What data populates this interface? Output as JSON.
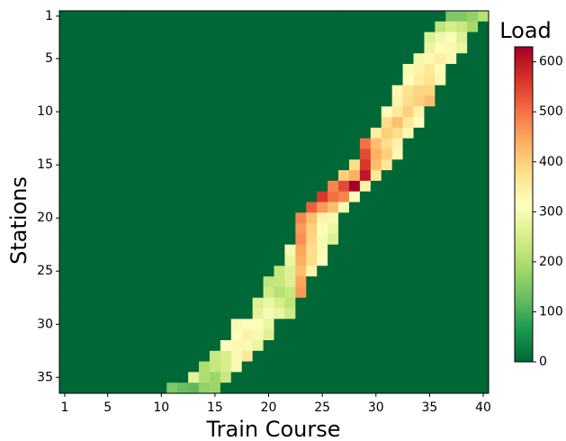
{
  "chart_data": {
    "type": "heatmap",
    "colorbar_title": "Load",
    "xlabel": "Train Course",
    "ylabel": "Stations",
    "colormap": "RdYlGn_r",
    "xlim": [
      1,
      40
    ],
    "ylim": [
      1,
      36
    ],
    "xticks": [
      1,
      5,
      10,
      15,
      20,
      25,
      30,
      35,
      40
    ],
    "yticks": [
      1,
      5,
      10,
      15,
      20,
      25,
      30,
      35
    ],
    "zlim": [
      0,
      630
    ],
    "zticks": [
      0,
      100,
      200,
      300,
      400,
      500,
      600
    ],
    "z": [
      [
        0,
        0,
        0,
        0,
        0,
        0,
        0,
        0,
        0,
        0,
        0,
        0,
        0,
        0,
        0,
        0,
        0,
        0,
        0,
        0,
        0,
        0,
        0,
        0,
        0,
        0,
        0,
        0,
        0,
        0,
        0,
        0,
        0,
        0,
        0,
        0,
        150,
        150,
        170,
        210
      ],
      [
        0,
        0,
        0,
        0,
        0,
        0,
        0,
        0,
        0,
        0,
        0,
        0,
        0,
        0,
        0,
        0,
        0,
        0,
        0,
        0,
        0,
        0,
        0,
        0,
        0,
        0,
        0,
        0,
        0,
        0,
        0,
        0,
        0,
        0,
        0,
        220,
        250,
        230,
        190,
        0
      ],
      [
        0,
        0,
        0,
        0,
        0,
        0,
        0,
        0,
        0,
        0,
        0,
        0,
        0,
        0,
        0,
        0,
        0,
        0,
        0,
        0,
        0,
        0,
        0,
        0,
        0,
        0,
        0,
        0,
        0,
        0,
        0,
        0,
        0,
        0,
        260,
        290,
        310,
        260,
        0,
        0
      ],
      [
        0,
        0,
        0,
        0,
        0,
        0,
        0,
        0,
        0,
        0,
        0,
        0,
        0,
        0,
        0,
        0,
        0,
        0,
        0,
        0,
        0,
        0,
        0,
        0,
        0,
        0,
        0,
        0,
        0,
        0,
        0,
        0,
        0,
        0,
        280,
        320,
        330,
        280,
        0,
        0
      ],
      [
        0,
        0,
        0,
        0,
        0,
        0,
        0,
        0,
        0,
        0,
        0,
        0,
        0,
        0,
        0,
        0,
        0,
        0,
        0,
        0,
        0,
        0,
        0,
        0,
        0,
        0,
        0,
        0,
        0,
        0,
        0,
        0,
        0,
        290,
        330,
        350,
        300,
        0,
        0,
        0
      ],
      [
        0,
        0,
        0,
        0,
        0,
        0,
        0,
        0,
        0,
        0,
        0,
        0,
        0,
        0,
        0,
        0,
        0,
        0,
        0,
        0,
        0,
        0,
        0,
        0,
        0,
        0,
        0,
        0,
        0,
        0,
        0,
        0,
        300,
        340,
        360,
        320,
        0,
        0,
        0,
        0
      ],
      [
        0,
        0,
        0,
        0,
        0,
        0,
        0,
        0,
        0,
        0,
        0,
        0,
        0,
        0,
        0,
        0,
        0,
        0,
        0,
        0,
        0,
        0,
        0,
        0,
        0,
        0,
        0,
        0,
        0,
        0,
        0,
        0,
        310,
        350,
        370,
        330,
        0,
        0,
        0,
        0
      ],
      [
        0,
        0,
        0,
        0,
        0,
        0,
        0,
        0,
        0,
        0,
        0,
        0,
        0,
        0,
        0,
        0,
        0,
        0,
        0,
        0,
        0,
        0,
        0,
        0,
        0,
        0,
        0,
        0,
        0,
        0,
        0,
        330,
        370,
        390,
        390,
        0,
        0,
        0,
        0,
        0
      ],
      [
        0,
        0,
        0,
        0,
        0,
        0,
        0,
        0,
        0,
        0,
        0,
        0,
        0,
        0,
        0,
        0,
        0,
        0,
        0,
        0,
        0,
        0,
        0,
        0,
        0,
        0,
        0,
        0,
        0,
        0,
        0,
        340,
        380,
        400,
        420,
        0,
        0,
        0,
        0,
        0
      ],
      [
        0,
        0,
        0,
        0,
        0,
        0,
        0,
        0,
        0,
        0,
        0,
        0,
        0,
        0,
        0,
        0,
        0,
        0,
        0,
        0,
        0,
        0,
        0,
        0,
        0,
        0,
        0,
        0,
        0,
        0,
        320,
        360,
        400,
        340,
        0,
        0,
        0,
        0,
        0,
        0
      ],
      [
        0,
        0,
        0,
        0,
        0,
        0,
        0,
        0,
        0,
        0,
        0,
        0,
        0,
        0,
        0,
        0,
        0,
        0,
        0,
        0,
        0,
        0,
        0,
        0,
        0,
        0,
        0,
        0,
        0,
        0,
        380,
        420,
        360,
        320,
        0,
        0,
        0,
        0,
        0,
        0
      ],
      [
        0,
        0,
        0,
        0,
        0,
        0,
        0,
        0,
        0,
        0,
        0,
        0,
        0,
        0,
        0,
        0,
        0,
        0,
        0,
        0,
        0,
        0,
        0,
        0,
        0,
        0,
        0,
        0,
        0,
        350,
        400,
        380,
        330,
        0,
        0,
        0,
        0,
        0,
        0,
        0
      ],
      [
        0,
        0,
        0,
        0,
        0,
        0,
        0,
        0,
        0,
        0,
        0,
        0,
        0,
        0,
        0,
        0,
        0,
        0,
        0,
        0,
        0,
        0,
        0,
        0,
        0,
        0,
        0,
        0,
        500,
        420,
        380,
        340,
        0,
        0,
        0,
        0,
        0,
        0,
        0,
        0
      ],
      [
        0,
        0,
        0,
        0,
        0,
        0,
        0,
        0,
        0,
        0,
        0,
        0,
        0,
        0,
        0,
        0,
        0,
        0,
        0,
        0,
        0,
        0,
        0,
        0,
        0,
        0,
        0,
        0,
        540,
        440,
        400,
        330,
        0,
        0,
        0,
        0,
        0,
        0,
        0,
        0
      ],
      [
        0,
        0,
        0,
        0,
        0,
        0,
        0,
        0,
        0,
        0,
        0,
        0,
        0,
        0,
        0,
        0,
        0,
        0,
        0,
        0,
        0,
        0,
        0,
        0,
        0,
        0,
        0,
        380,
        560,
        420,
        360,
        0,
        0,
        0,
        0,
        0,
        0,
        0,
        0,
        0
      ],
      [
        0,
        0,
        0,
        0,
        0,
        0,
        0,
        0,
        0,
        0,
        0,
        0,
        0,
        0,
        0,
        0,
        0,
        0,
        0,
        0,
        0,
        0,
        0,
        0,
        0,
        0,
        400,
        440,
        600,
        360,
        0,
        0,
        0,
        0,
        0,
        0,
        0,
        0,
        0,
        0
      ],
      [
        0,
        0,
        0,
        0,
        0,
        0,
        0,
        0,
        0,
        0,
        0,
        0,
        0,
        0,
        0,
        0,
        0,
        0,
        0,
        0,
        0,
        0,
        0,
        0,
        0,
        480,
        540,
        630,
        340,
        0,
        0,
        0,
        0,
        0,
        0,
        0,
        0,
        0,
        0,
        0
      ],
      [
        0,
        0,
        0,
        0,
        0,
        0,
        0,
        0,
        0,
        0,
        0,
        0,
        0,
        0,
        0,
        0,
        0,
        0,
        0,
        0,
        0,
        0,
        0,
        0,
        560,
        500,
        480,
        320,
        0,
        0,
        0,
        0,
        0,
        0,
        0,
        0,
        0,
        0,
        0,
        0
      ],
      [
        0,
        0,
        0,
        0,
        0,
        0,
        0,
        0,
        0,
        0,
        0,
        0,
        0,
        0,
        0,
        0,
        0,
        0,
        0,
        0,
        0,
        0,
        0,
        520,
        460,
        420,
        300,
        0,
        0,
        0,
        0,
        0,
        0,
        0,
        0,
        0,
        0,
        0,
        0,
        0
      ],
      [
        0,
        0,
        0,
        0,
        0,
        0,
        0,
        0,
        0,
        0,
        0,
        0,
        0,
        0,
        0,
        0,
        0,
        0,
        0,
        0,
        0,
        0,
        480,
        420,
        340,
        300,
        0,
        0,
        0,
        0,
        0,
        0,
        0,
        0,
        0,
        0,
        0,
        0,
        0,
        0
      ],
      [
        0,
        0,
        0,
        0,
        0,
        0,
        0,
        0,
        0,
        0,
        0,
        0,
        0,
        0,
        0,
        0,
        0,
        0,
        0,
        0,
        0,
        0,
        460,
        400,
        320,
        280,
        0,
        0,
        0,
        0,
        0,
        0,
        0,
        0,
        0,
        0,
        0,
        0,
        0,
        0
      ],
      [
        0,
        0,
        0,
        0,
        0,
        0,
        0,
        0,
        0,
        0,
        0,
        0,
        0,
        0,
        0,
        0,
        0,
        0,
        0,
        0,
        0,
        0,
        470,
        390,
        300,
        260,
        0,
        0,
        0,
        0,
        0,
        0,
        0,
        0,
        0,
        0,
        0,
        0,
        0,
        0
      ],
      [
        0,
        0,
        0,
        0,
        0,
        0,
        0,
        0,
        0,
        0,
        0,
        0,
        0,
        0,
        0,
        0,
        0,
        0,
        0,
        0,
        0,
        300,
        450,
        380,
        300,
        0,
        0,
        0,
        0,
        0,
        0,
        0,
        0,
        0,
        0,
        0,
        0,
        0,
        0,
        0
      ],
      [
        0,
        0,
        0,
        0,
        0,
        0,
        0,
        0,
        0,
        0,
        0,
        0,
        0,
        0,
        0,
        0,
        0,
        0,
        0,
        0,
        0,
        280,
        440,
        380,
        320,
        0,
        0,
        0,
        0,
        0,
        0,
        0,
        0,
        0,
        0,
        0,
        0,
        0,
        0,
        0
      ],
      [
        0,
        0,
        0,
        0,
        0,
        0,
        0,
        0,
        0,
        0,
        0,
        0,
        0,
        0,
        0,
        0,
        0,
        0,
        0,
        0,
        230,
        260,
        420,
        340,
        0,
        0,
        0,
        0,
        0,
        0,
        0,
        0,
        0,
        0,
        0,
        0,
        0,
        0,
        0,
        0
      ],
      [
        0,
        0,
        0,
        0,
        0,
        0,
        0,
        0,
        0,
        0,
        0,
        0,
        0,
        0,
        0,
        0,
        0,
        0,
        0,
        220,
        230,
        260,
        450,
        0,
        0,
        0,
        0,
        0,
        0,
        0,
        0,
        0,
        0,
        0,
        0,
        0,
        0,
        0,
        0,
        0
      ],
      [
        0,
        0,
        0,
        0,
        0,
        0,
        0,
        0,
        0,
        0,
        0,
        0,
        0,
        0,
        0,
        0,
        0,
        0,
        0,
        240,
        210,
        230,
        460,
        0,
        0,
        0,
        0,
        0,
        0,
        0,
        0,
        0,
        0,
        0,
        0,
        0,
        0,
        0,
        0,
        0
      ],
      [
        0,
        0,
        0,
        0,
        0,
        0,
        0,
        0,
        0,
        0,
        0,
        0,
        0,
        0,
        0,
        0,
        0,
        0,
        260,
        280,
        250,
        220,
        0,
        0,
        0,
        0,
        0,
        0,
        0,
        0,
        0,
        0,
        0,
        0,
        0,
        0,
        0,
        0,
        0,
        0
      ],
      [
        0,
        0,
        0,
        0,
        0,
        0,
        0,
        0,
        0,
        0,
        0,
        0,
        0,
        0,
        0,
        0,
        0,
        0,
        270,
        300,
        280,
        240,
        0,
        0,
        0,
        0,
        0,
        0,
        0,
        0,
        0,
        0,
        0,
        0,
        0,
        0,
        0,
        0,
        0,
        0
      ],
      [
        0,
        0,
        0,
        0,
        0,
        0,
        0,
        0,
        0,
        0,
        0,
        0,
        0,
        0,
        0,
        0,
        300,
        320,
        310,
        280,
        0,
        0,
        0,
        0,
        0,
        0,
        0,
        0,
        0,
        0,
        0,
        0,
        0,
        0,
        0,
        0,
        0,
        0,
        0,
        0
      ],
      [
        0,
        0,
        0,
        0,
        0,
        0,
        0,
        0,
        0,
        0,
        0,
        0,
        0,
        0,
        0,
        0,
        310,
        340,
        300,
        260,
        0,
        0,
        0,
        0,
        0,
        0,
        0,
        0,
        0,
        0,
        0,
        0,
        0,
        0,
        0,
        0,
        0,
        0,
        0,
        0
      ],
      [
        0,
        0,
        0,
        0,
        0,
        0,
        0,
        0,
        0,
        0,
        0,
        0,
        0,
        0,
        0,
        320,
        330,
        300,
        280,
        0,
        0,
        0,
        0,
        0,
        0,
        0,
        0,
        0,
        0,
        0,
        0,
        0,
        0,
        0,
        0,
        0,
        0,
        0,
        0,
        0
      ],
      [
        0,
        0,
        0,
        0,
        0,
        0,
        0,
        0,
        0,
        0,
        0,
        0,
        0,
        0,
        230,
        250,
        330,
        360,
        0,
        0,
        0,
        0,
        0,
        0,
        0,
        0,
        0,
        0,
        0,
        0,
        0,
        0,
        0,
        0,
        0,
        0,
        0,
        0,
        0,
        0
      ],
      [
        0,
        0,
        0,
        0,
        0,
        0,
        0,
        0,
        0,
        0,
        0,
        0,
        0,
        200,
        230,
        250,
        300,
        0,
        0,
        0,
        0,
        0,
        0,
        0,
        0,
        0,
        0,
        0,
        0,
        0,
        0,
        0,
        0,
        0,
        0,
        0,
        0,
        0,
        0,
        0
      ],
      [
        0,
        0,
        0,
        0,
        0,
        0,
        0,
        0,
        0,
        0,
        0,
        0,
        270,
        200,
        180,
        230,
        0,
        0,
        0,
        0,
        0,
        0,
        0,
        0,
        0,
        0,
        0,
        0,
        0,
        0,
        0,
        0,
        0,
        0,
        0,
        0,
        0,
        0,
        0,
        0
      ],
      [
        0,
        0,
        0,
        0,
        0,
        0,
        0,
        0,
        0,
        0,
        150,
        130,
        120,
        170,
        180,
        0,
        0,
        0,
        0,
        0,
        0,
        0,
        0,
        0,
        0,
        0,
        0,
        0,
        0,
        0,
        0,
        0,
        0,
        0,
        0,
        0,
        0,
        0,
        0,
        0
      ]
    ]
  }
}
